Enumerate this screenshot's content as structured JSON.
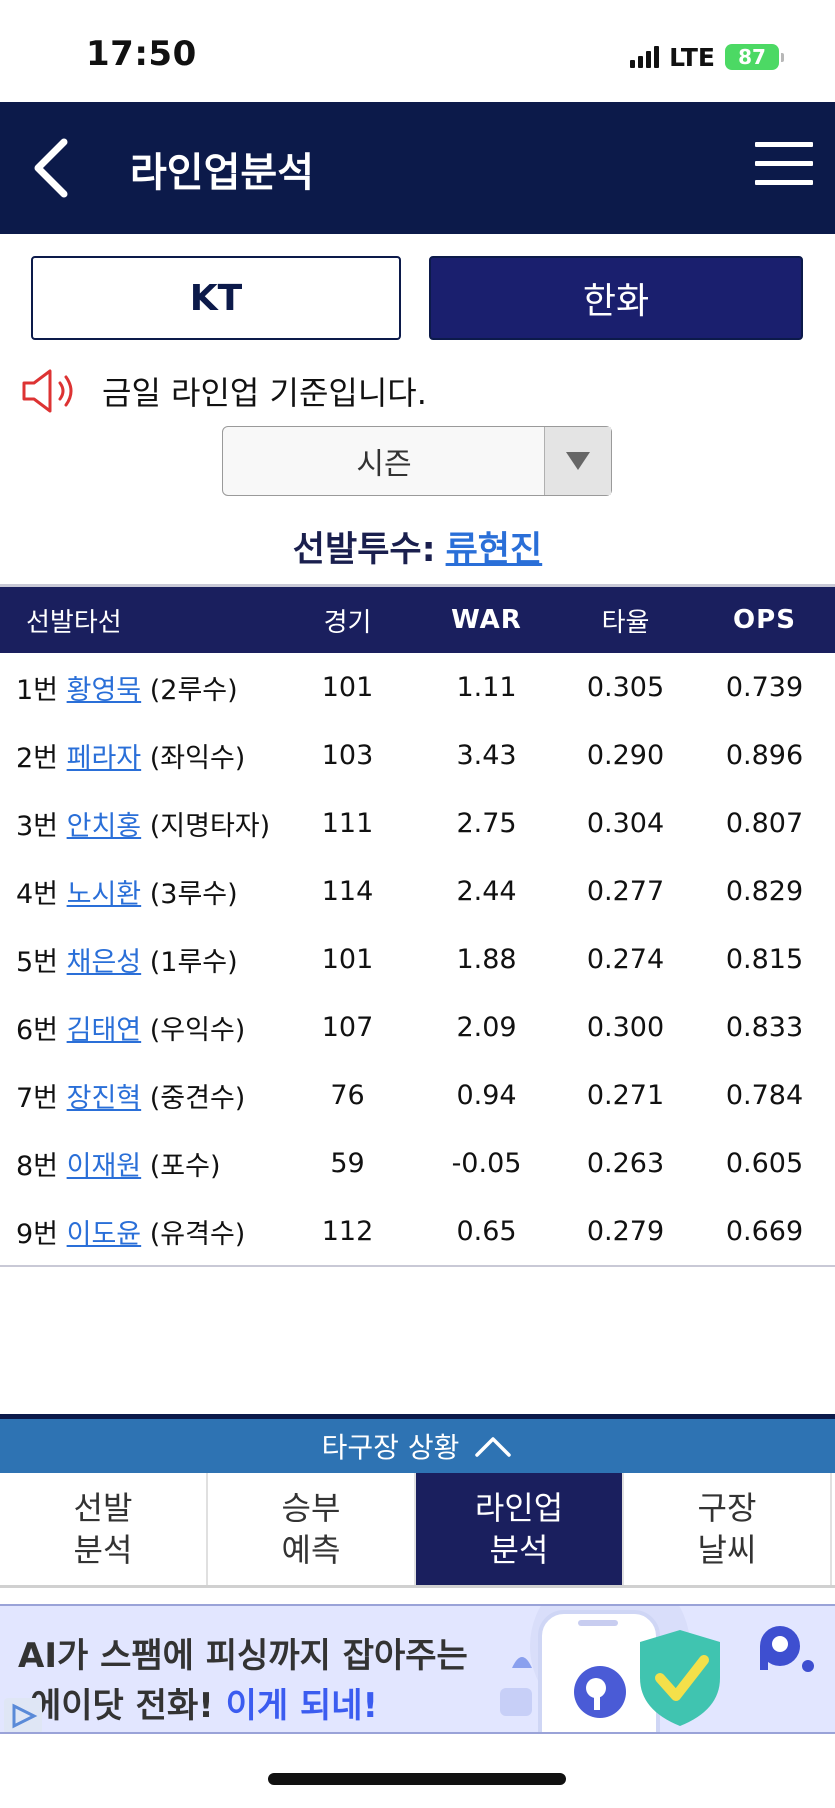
{
  "status_bar": {
    "time": "17:50",
    "network": "LTE",
    "battery": "87"
  },
  "header": {
    "title": "라인업분석"
  },
  "teams": {
    "away": "KT",
    "home": "한화",
    "selected": "한화"
  },
  "notice": "금일 라인업 기준입니다.",
  "season_select": {
    "value": "시즌"
  },
  "starting_pitcher": {
    "label": "선발투수:",
    "name": "류현진"
  },
  "table": {
    "headers": [
      "선발타선",
      "경기",
      "WAR",
      "타율",
      "OPS"
    ],
    "rows": [
      {
        "order": "1번",
        "name": "황영묵",
        "position": "(2루수)",
        "games": "101",
        "war": "1.11",
        "avg": "0.305",
        "ops": "0.739"
      },
      {
        "order": "2번",
        "name": "페라자",
        "position": "(좌익수)",
        "games": "103",
        "war": "3.43",
        "avg": "0.290",
        "ops": "0.896"
      },
      {
        "order": "3번",
        "name": "안치홍",
        "position": "(지명타자)",
        "games": "111",
        "war": "2.75",
        "avg": "0.304",
        "ops": "0.807"
      },
      {
        "order": "4번",
        "name": "노시환",
        "position": "(3루수)",
        "games": "114",
        "war": "2.44",
        "avg": "0.277",
        "ops": "0.829"
      },
      {
        "order": "5번",
        "name": "채은성",
        "position": "(1루수)",
        "games": "101",
        "war": "1.88",
        "avg": "0.274",
        "ops": "0.815"
      },
      {
        "order": "6번",
        "name": "김태연",
        "position": "(우익수)",
        "games": "107",
        "war": "2.09",
        "avg": "0.300",
        "ops": "0.833"
      },
      {
        "order": "7번",
        "name": "장진혁",
        "position": "(중견수)",
        "games": "76",
        "war": "0.94",
        "avg": "0.271",
        "ops": "0.784"
      },
      {
        "order": "8번",
        "name": "이재원",
        "position": "(포수)",
        "games": "59",
        "war": "-0.05",
        "avg": "0.263",
        "ops": "0.605"
      },
      {
        "order": "9번",
        "name": "이도윤",
        "position": "(유격수)",
        "games": "112",
        "war": "0.65",
        "avg": "0.279",
        "ops": "0.669"
      }
    ]
  },
  "other_games": {
    "label": "타구장 상황"
  },
  "nav_tabs": [
    {
      "label": "선발\n분석",
      "active": false
    },
    {
      "label": "승부\n예측",
      "active": false
    },
    {
      "label": "라인업\n분석",
      "active": true
    },
    {
      "label": "구장\n날씨",
      "active": false
    }
  ],
  "ad": {
    "line1": "AI가 스팸에 피싱까지 잡아주는",
    "line2_prefix": "에이닷 전화!",
    "line2_highlight": "이게 되네!"
  },
  "colors": {
    "navy": "#0c1a4a",
    "table_header": "#1a1f5e",
    "link": "#2a6fd8",
    "tab_bar": "#2e73b3"
  }
}
